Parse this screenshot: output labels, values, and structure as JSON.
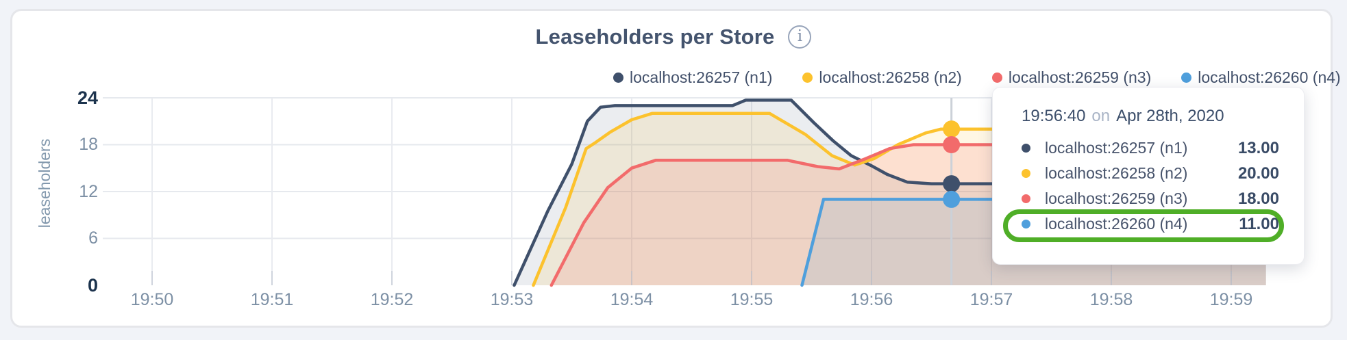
{
  "chart": {
    "title": "Leaseholders per Store",
    "info_glyph": "i",
    "ylabel": "leaseholders"
  },
  "chart_data": {
    "type": "area",
    "title": "Leaseholders per Store",
    "ylabel": "leaseholders",
    "x_unit": "minutes after 19:50",
    "x_ticks": [
      "19:50",
      "19:51",
      "19:52",
      "19:53",
      "19:54",
      "19:55",
      "19:56",
      "19:57",
      "19:58",
      "19:59"
    ],
    "y_ticks": [
      0,
      6,
      12,
      18,
      24
    ],
    "y_bold_ticks": [
      0,
      24
    ],
    "ylim": [
      0,
      24
    ],
    "x_end": 9.29,
    "grid": true,
    "legend_position": "top",
    "series": [
      {
        "name": "localhost:26257 (n1)",
        "color": "#3f506b",
        "fill_opacity": 0.1,
        "points": [
          [
            3.02,
            0
          ],
          [
            3.3,
            9.5
          ],
          [
            3.5,
            15.5
          ],
          [
            3.63,
            21
          ],
          [
            3.74,
            22.8
          ],
          [
            3.86,
            23
          ],
          [
            4.84,
            23
          ],
          [
            4.95,
            23.7
          ],
          [
            5.33,
            23.7
          ],
          [
            5.52,
            20.8
          ],
          [
            5.68,
            18.5
          ],
          [
            5.83,
            16.6
          ],
          [
            6.0,
            15.3
          ],
          [
            6.13,
            14.2
          ],
          [
            6.3,
            13.2
          ],
          [
            6.5,
            13
          ],
          [
            9.29,
            13
          ]
        ]
      },
      {
        "name": "localhost:26258 (n2)",
        "color": "#fcc22d",
        "fill_opacity": 0.13,
        "points": [
          [
            3.18,
            0
          ],
          [
            3.45,
            10
          ],
          [
            3.62,
            17.5
          ],
          [
            3.7,
            18.3
          ],
          [
            3.82,
            19.6
          ],
          [
            4.0,
            21.2
          ],
          [
            4.17,
            22
          ],
          [
            5.15,
            22
          ],
          [
            5.45,
            19.3
          ],
          [
            5.67,
            16.6
          ],
          [
            5.86,
            15.4
          ],
          [
            6.02,
            16.2
          ],
          [
            6.22,
            18
          ],
          [
            6.45,
            19.5
          ],
          [
            6.58,
            20
          ],
          [
            9.29,
            20
          ]
        ]
      },
      {
        "name": "localhost:26259 (n3)",
        "color": "#f26b6b",
        "fill_opacity": 0.16,
        "points": [
          [
            3.33,
            0
          ],
          [
            3.6,
            8
          ],
          [
            3.8,
            12.5
          ],
          [
            4.0,
            15
          ],
          [
            4.2,
            16
          ],
          [
            5.3,
            16
          ],
          [
            5.55,
            15.2
          ],
          [
            5.73,
            14.9
          ],
          [
            5.95,
            16.2
          ],
          [
            6.15,
            17.5
          ],
          [
            6.35,
            18
          ],
          [
            9.29,
            18
          ]
        ]
      },
      {
        "name": "localhost:26260 (n4)",
        "color": "#4f9fdc",
        "fill_opacity": 0.13,
        "points": [
          [
            5.42,
            0
          ],
          [
            5.6,
            11
          ],
          [
            9.29,
            11
          ]
        ]
      }
    ],
    "hover": {
      "time": "19:56:40",
      "t": 6.6667,
      "values": [
        13,
        20,
        18,
        11
      ]
    }
  },
  "legend": {
    "items": [
      {
        "label": "localhost:26257 (n1)",
        "color": "#3f506b"
      },
      {
        "label": "localhost:26258 (n2)",
        "color": "#fcc22d"
      },
      {
        "label": "localhost:26259 (n3)",
        "color": "#f26b6b"
      },
      {
        "label": "localhost:26260 (n4)",
        "color": "#4f9fdc"
      }
    ]
  },
  "tooltip": {
    "time": "19:56:40",
    "on_word": "on",
    "date": "Apr 28th, 2020",
    "rows": [
      {
        "label": "localhost:26257 (n1)",
        "value": "13.00",
        "color": "#3f506b"
      },
      {
        "label": "localhost:26258 (n2)",
        "value": "20.00",
        "color": "#fcc22d"
      },
      {
        "label": "localhost:26259 (n3)",
        "value": "18.00",
        "color": "#f26b6b"
      },
      {
        "label": "localhost:26260 (n4)",
        "value": "11.00",
        "color": "#4f9fdc"
      }
    ],
    "highlighted_row_index": 3,
    "highlight_color": "#4fae27"
  },
  "colors": {
    "page_bg": "#f1f3f8",
    "panel_border": "#e5e6ea",
    "grid_h": "#e6e9ee",
    "grid_v": "#e9ebf0",
    "axis_tick": "#b9c1cd",
    "hover_line": "#ccd1d8"
  }
}
